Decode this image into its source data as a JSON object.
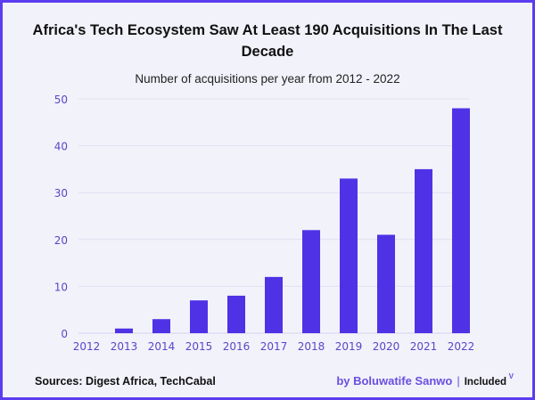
{
  "chart_data": {
    "type": "bar",
    "title_lines": [
      "Africa's Tech Ecosystem Saw At Least 190 Acquisitions In The Last",
      "Decade"
    ],
    "subtitle": "Number of acquisitions per year from 2012 - 2022",
    "xlabel": "",
    "ylabel": "",
    "categories": [
      "2012",
      "2013",
      "2014",
      "2015",
      "2016",
      "2017",
      "2018",
      "2019",
      "2020",
      "2021",
      "2022"
    ],
    "values": [
      0,
      1,
      3,
      7,
      8,
      12,
      22,
      33,
      21,
      35,
      48
    ],
    "ylim": [
      0,
      50
    ],
    "yticks": [
      0,
      10,
      20,
      30,
      40,
      50
    ],
    "grid": true,
    "legend": "none",
    "bar_color": "#4f32e6",
    "tick_color": "#5a46c8"
  },
  "footer": {
    "sources": "Sources: Digest Africa, TechCabal",
    "byline": "by Boluwatife Sanwo",
    "separator": "|",
    "logo_text": "Included",
    "logo_mark": "V"
  }
}
